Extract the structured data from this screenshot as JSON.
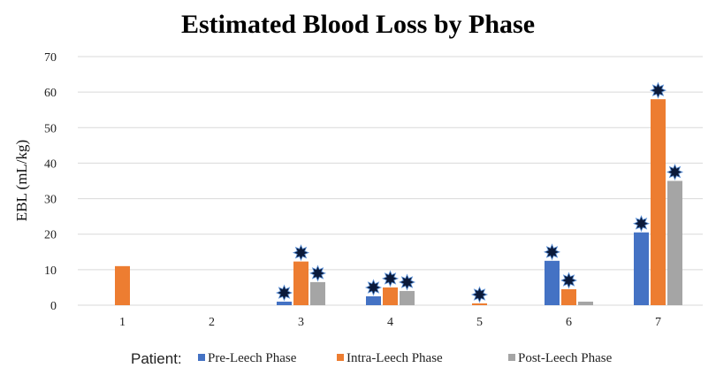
{
  "chart_data": {
    "type": "bar",
    "title": "Estimated Blood Loss by Phase",
    "xlabel": "",
    "ylabel": "EBL (mL/kg)",
    "ylim": [
      0,
      70
    ],
    "yticks": [
      0,
      10,
      20,
      30,
      40,
      50,
      60,
      70
    ],
    "grid": true,
    "categories": [
      "1",
      "2",
      "3",
      "4",
      "5",
      "6",
      "7"
    ],
    "legend_title": "Patient:",
    "legend_position": "bottom",
    "series": [
      {
        "name": "Pre-Leech Phase",
        "color": "#4472c4",
        "values": [
          0,
          0,
          1,
          2.5,
          0,
          12.5,
          20.5
        ],
        "starred": [
          false,
          false,
          true,
          true,
          false,
          true,
          true
        ]
      },
      {
        "name": "Intra-Leech Phase",
        "color": "#ed7d31",
        "values": [
          11,
          0,
          12.3,
          5,
          0.5,
          4.5,
          58
        ],
        "starred": [
          false,
          false,
          true,
          true,
          true,
          true,
          true
        ]
      },
      {
        "name": "Post-Leech Phase",
        "color": "#a5a5a5",
        "values": [
          0,
          0,
          6.5,
          4,
          0,
          1,
          35
        ],
        "starred": [
          false,
          false,
          true,
          true,
          false,
          false,
          true
        ]
      }
    ]
  }
}
